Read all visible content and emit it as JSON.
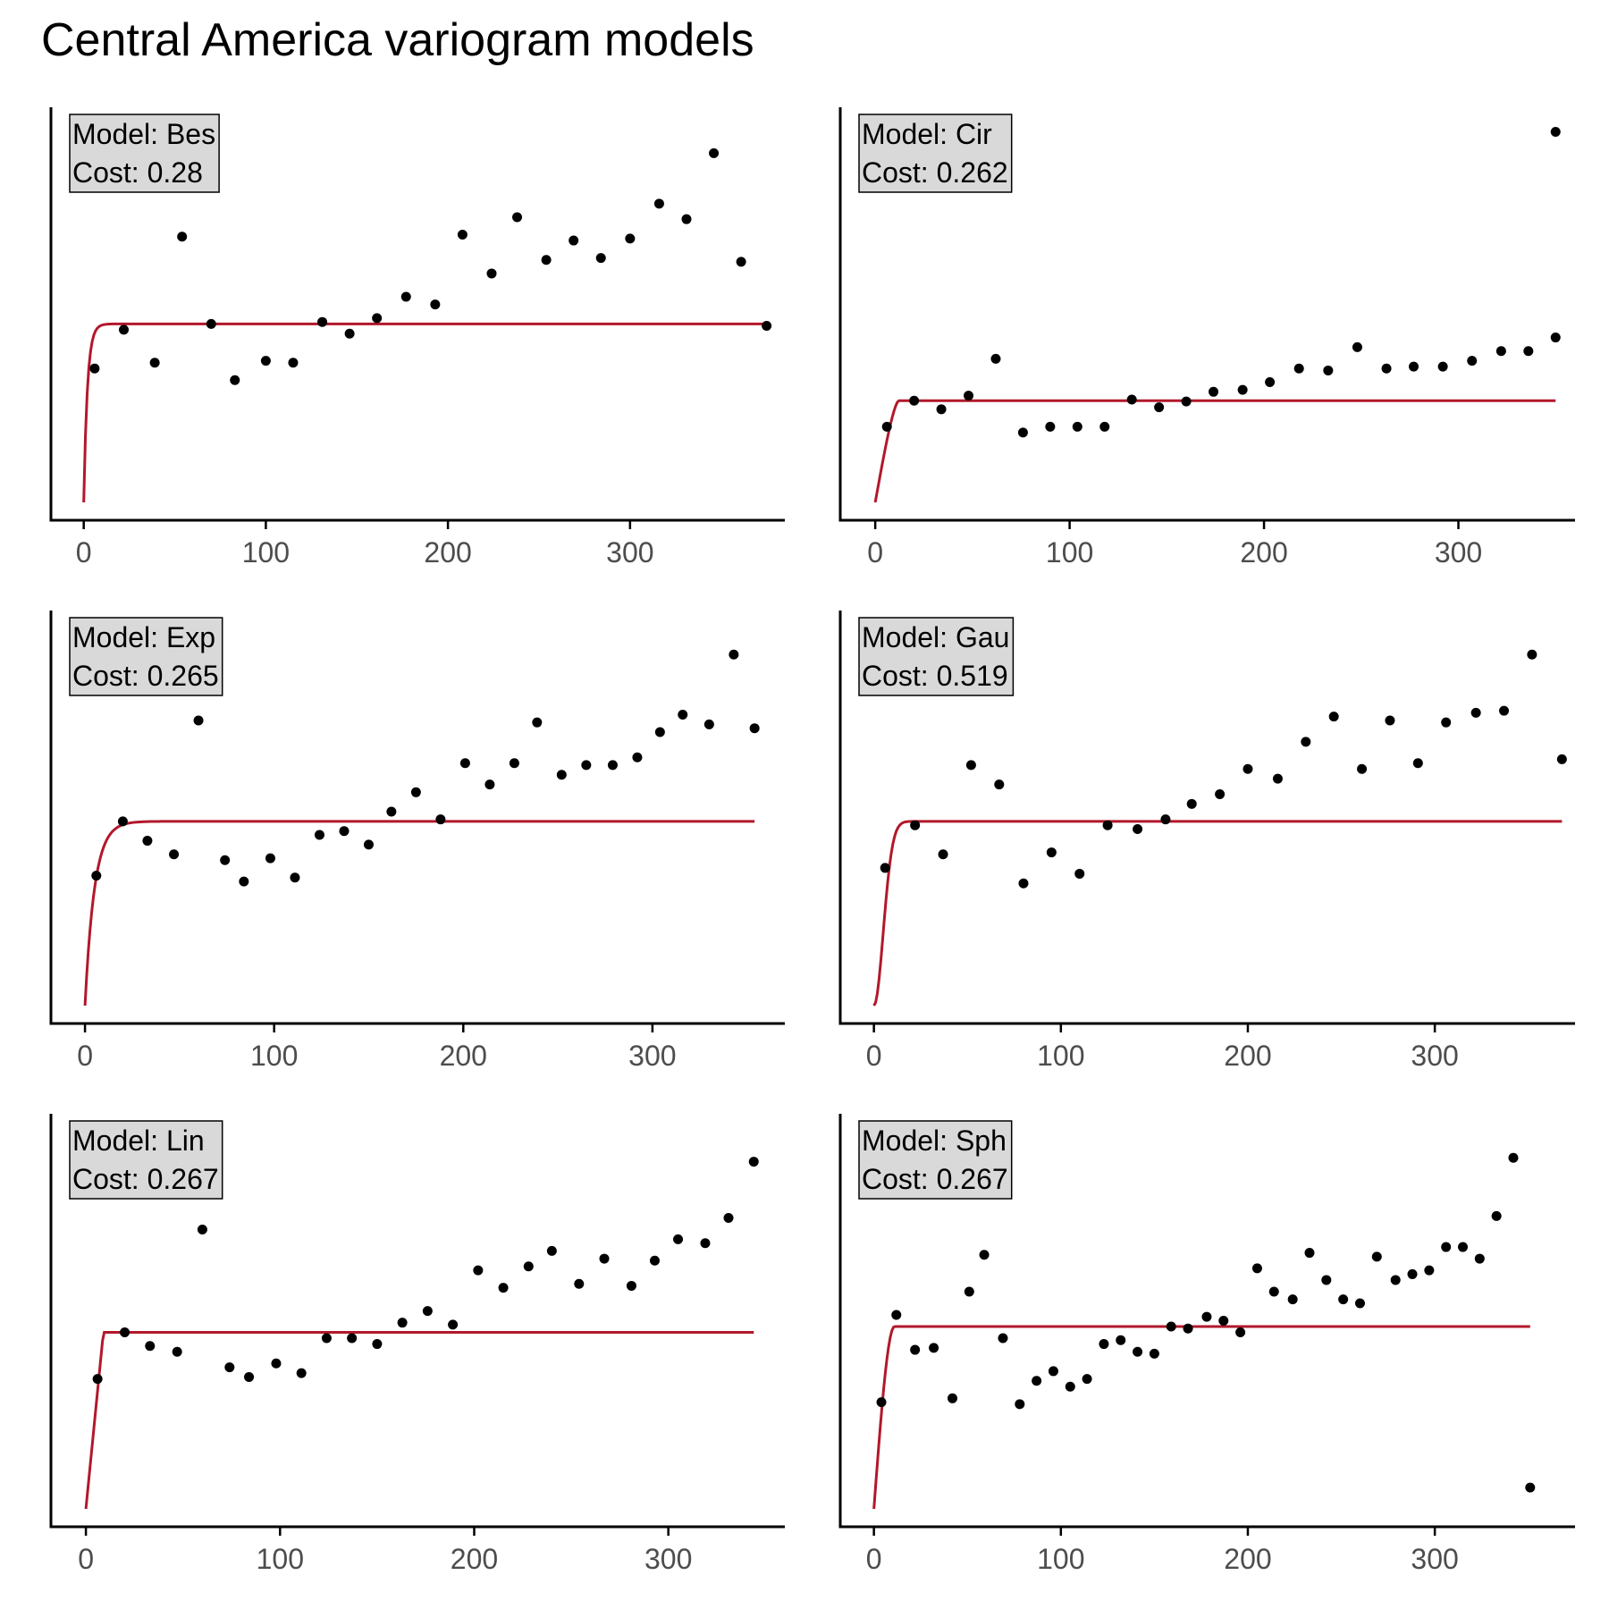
{
  "title": "Central America variogram models",
  "colors": {
    "model_line": "#b2182b",
    "points": "#000000",
    "label_box": "#d9d9d9",
    "axis": "#000000"
  },
  "chart_data": [
    {
      "type": "scatter",
      "label": {
        "model": "Model: Bes",
        "cost": "Cost: 0.28"
      },
      "xlim": [
        -18,
        385
      ],
      "ylim": [
        0,
        1
      ],
      "xticks": [
        0,
        100,
        200,
        300
      ],
      "points": [
        [
          6,
          0.345
        ],
        [
          22,
          0.445
        ],
        [
          39,
          0.36
        ],
        [
          54,
          0.685
        ],
        [
          70,
          0.46
        ],
        [
          83,
          0.315
        ],
        [
          100,
          0.365
        ],
        [
          115,
          0.36
        ],
        [
          131,
          0.465
        ],
        [
          146,
          0.435
        ],
        [
          161,
          0.475
        ],
        [
          177,
          0.53
        ],
        [
          193,
          0.51
        ],
        [
          208,
          0.69
        ],
        [
          224,
          0.59
        ],
        [
          238,
          0.735
        ],
        [
          254,
          0.625
        ],
        [
          269,
          0.675
        ],
        [
          284,
          0.63
        ],
        [
          300,
          0.68
        ],
        [
          316,
          0.77
        ],
        [
          331,
          0.73
        ],
        [
          346,
          0.9
        ],
        [
          361,
          0.62
        ],
        [
          375,
          0.455
        ]
      ],
      "model_line": {
        "range": 2,
        "shape": "exp",
        "nugget": 0,
        "sill": 0.46,
        "xmax": 375
      }
    },
    {
      "type": "scatter",
      "label": {
        "model": "Model: Cir",
        "cost": "Cost: 0.262"
      },
      "xlim": [
        -18,
        360
      ],
      "ylim": [
        0,
        1
      ],
      "xticks": [
        0,
        100,
        200,
        300
      ],
      "points": [
        [
          6,
          0.195
        ],
        [
          20,
          0.262
        ],
        [
          34,
          0.24
        ],
        [
          48,
          0.275
        ],
        [
          62,
          0.37
        ],
        [
          76,
          0.18
        ],
        [
          90,
          0.195
        ],
        [
          104,
          0.195
        ],
        [
          118,
          0.195
        ],
        [
          132,
          0.265
        ],
        [
          146,
          0.245
        ],
        [
          160,
          0.26
        ],
        [
          174,
          0.285
        ],
        [
          189,
          0.29
        ],
        [
          203,
          0.31
        ],
        [
          218,
          0.345
        ],
        [
          233,
          0.34
        ],
        [
          248,
          0.4
        ],
        [
          263,
          0.345
        ],
        [
          277,
          0.35
        ],
        [
          292,
          0.35
        ],
        [
          307,
          0.365
        ],
        [
          322,
          0.39
        ],
        [
          336,
          0.39
        ],
        [
          350,
          0.425
        ],
        [
          350,
          0.955
        ]
      ],
      "model_line": {
        "range": 12,
        "shape": "cir",
        "nugget": 0,
        "sill": 0.262,
        "xmax": 350
      }
    },
    {
      "type": "scatter",
      "label": {
        "model": "Model: Exp",
        "cost": "Cost: 0.265"
      },
      "xlim": [
        -18,
        370
      ],
      "ylim": [
        0,
        1
      ],
      "xticks": [
        0,
        100,
        200,
        300
      ],
      "points": [
        [
          6,
          0.335
        ],
        [
          20,
          0.475
        ],
        [
          33,
          0.425
        ],
        [
          47,
          0.39
        ],
        [
          60,
          0.735
        ],
        [
          74,
          0.375
        ],
        [
          84,
          0.32
        ],
        [
          98,
          0.38
        ],
        [
          111,
          0.33
        ],
        [
          124,
          0.44
        ],
        [
          137,
          0.45
        ],
        [
          150,
          0.415
        ],
        [
          162,
          0.5
        ],
        [
          175,
          0.55
        ],
        [
          188,
          0.48
        ],
        [
          201,
          0.625
        ],
        [
          214,
          0.57
        ],
        [
          227,
          0.625
        ],
        [
          239,
          0.73
        ],
        [
          252,
          0.595
        ],
        [
          265,
          0.62
        ],
        [
          279,
          0.62
        ],
        [
          292,
          0.64
        ],
        [
          304,
          0.705
        ],
        [
          316,
          0.75
        ],
        [
          330,
          0.725
        ],
        [
          343,
          0.905
        ],
        [
          354,
          0.715
        ]
      ],
      "model_line": {
        "range": 5,
        "shape": "exp",
        "nugget": 0,
        "sill": 0.475,
        "xmax": 354
      }
    },
    {
      "type": "scatter",
      "label": {
        "model": "Model: Gau",
        "cost": "Cost: 0.519"
      },
      "xlim": [
        -18,
        375
      ],
      "ylim": [
        0,
        1
      ],
      "xticks": [
        0,
        100,
        200,
        300
      ],
      "points": [
        [
          6,
          0.355
        ],
        [
          22,
          0.465
        ],
        [
          37,
          0.39
        ],
        [
          52,
          0.62
        ],
        [
          67,
          0.57
        ],
        [
          80,
          0.315
        ],
        [
          95,
          0.395
        ],
        [
          110,
          0.34
        ],
        [
          125,
          0.465
        ],
        [
          141,
          0.455
        ],
        [
          156,
          0.48
        ],
        [
          170,
          0.52
        ],
        [
          185,
          0.545
        ],
        [
          200,
          0.61
        ],
        [
          216,
          0.585
        ],
        [
          231,
          0.68
        ],
        [
          246,
          0.745
        ],
        [
          261,
          0.61
        ],
        [
          276,
          0.735
        ],
        [
          291,
          0.625
        ],
        [
          306,
          0.73
        ],
        [
          322,
          0.755
        ],
        [
          337,
          0.76
        ],
        [
          352,
          0.905
        ],
        [
          368,
          0.635
        ]
      ],
      "model_line": {
        "range": 7,
        "shape": "gau",
        "nugget": 0,
        "sill": 0.475,
        "xmax": 368
      }
    },
    {
      "type": "scatter",
      "label": {
        "model": "Model: Lin",
        "cost": "Cost: 0.267"
      },
      "xlim": [
        -18,
        360
      ],
      "ylim": [
        0,
        1
      ],
      "xticks": [
        0,
        100,
        200,
        300
      ],
      "points": [
        [
          6,
          0.335
        ],
        [
          20,
          0.455
        ],
        [
          33,
          0.42
        ],
        [
          47,
          0.405
        ],
        [
          60,
          0.72
        ],
        [
          74,
          0.365
        ],
        [
          84,
          0.34
        ],
        [
          98,
          0.375
        ],
        [
          111,
          0.35
        ],
        [
          124,
          0.44
        ],
        [
          137,
          0.44
        ],
        [
          150,
          0.425
        ],
        [
          163,
          0.48
        ],
        [
          176,
          0.51
        ],
        [
          189,
          0.475
        ],
        [
          202,
          0.615
        ],
        [
          215,
          0.57
        ],
        [
          228,
          0.625
        ],
        [
          240,
          0.665
        ],
        [
          254,
          0.58
        ],
        [
          267,
          0.645
        ],
        [
          281,
          0.575
        ],
        [
          293,
          0.64
        ],
        [
          305,
          0.695
        ],
        [
          319,
          0.685
        ],
        [
          331,
          0.75
        ],
        [
          344,
          0.895
        ]
      ],
      "model_line": {
        "range": 9,
        "shape": "lin",
        "nugget": 0,
        "sill": 0.455,
        "xmax": 344
      }
    },
    {
      "type": "scatter",
      "label": {
        "model": "Model: Sph",
        "cost": "Cost: 0.267"
      },
      "xlim": [
        -18,
        375
      ],
      "ylim": [
        0,
        1
      ],
      "xticks": [
        0,
        100,
        200,
        300
      ],
      "points": [
        [
          4,
          0.275
        ],
        [
          12,
          0.5
        ],
        [
          22,
          0.41
        ],
        [
          32,
          0.415
        ],
        [
          42,
          0.285
        ],
        [
          51,
          0.56
        ],
        [
          59,
          0.655
        ],
        [
          69,
          0.44
        ],
        [
          78,
          0.27
        ],
        [
          87,
          0.33
        ],
        [
          96,
          0.355
        ],
        [
          105,
          0.315
        ],
        [
          114,
          0.335
        ],
        [
          123,
          0.425
        ],
        [
          132,
          0.435
        ],
        [
          141,
          0.405
        ],
        [
          150,
          0.4
        ],
        [
          159,
          0.47
        ],
        [
          168,
          0.465
        ],
        [
          178,
          0.495
        ],
        [
          187,
          0.485
        ],
        [
          196,
          0.455
        ],
        [
          205,
          0.62
        ],
        [
          214,
          0.56
        ],
        [
          224,
          0.54
        ],
        [
          233,
          0.66
        ],
        [
          242,
          0.59
        ],
        [
          251,
          0.54
        ],
        [
          260,
          0.53
        ],
        [
          269,
          0.65
        ],
        [
          279,
          0.59
        ],
        [
          288,
          0.605
        ],
        [
          297,
          0.615
        ],
        [
          306,
          0.675
        ],
        [
          315,
          0.675
        ],
        [
          324,
          0.645
        ],
        [
          333,
          0.755
        ],
        [
          342,
          0.905
        ],
        [
          351,
          0.055
        ]
      ],
      "model_line": {
        "range": 11,
        "shape": "sph",
        "nugget": 0,
        "sill": 0.47,
        "xmax": 351
      }
    }
  ]
}
